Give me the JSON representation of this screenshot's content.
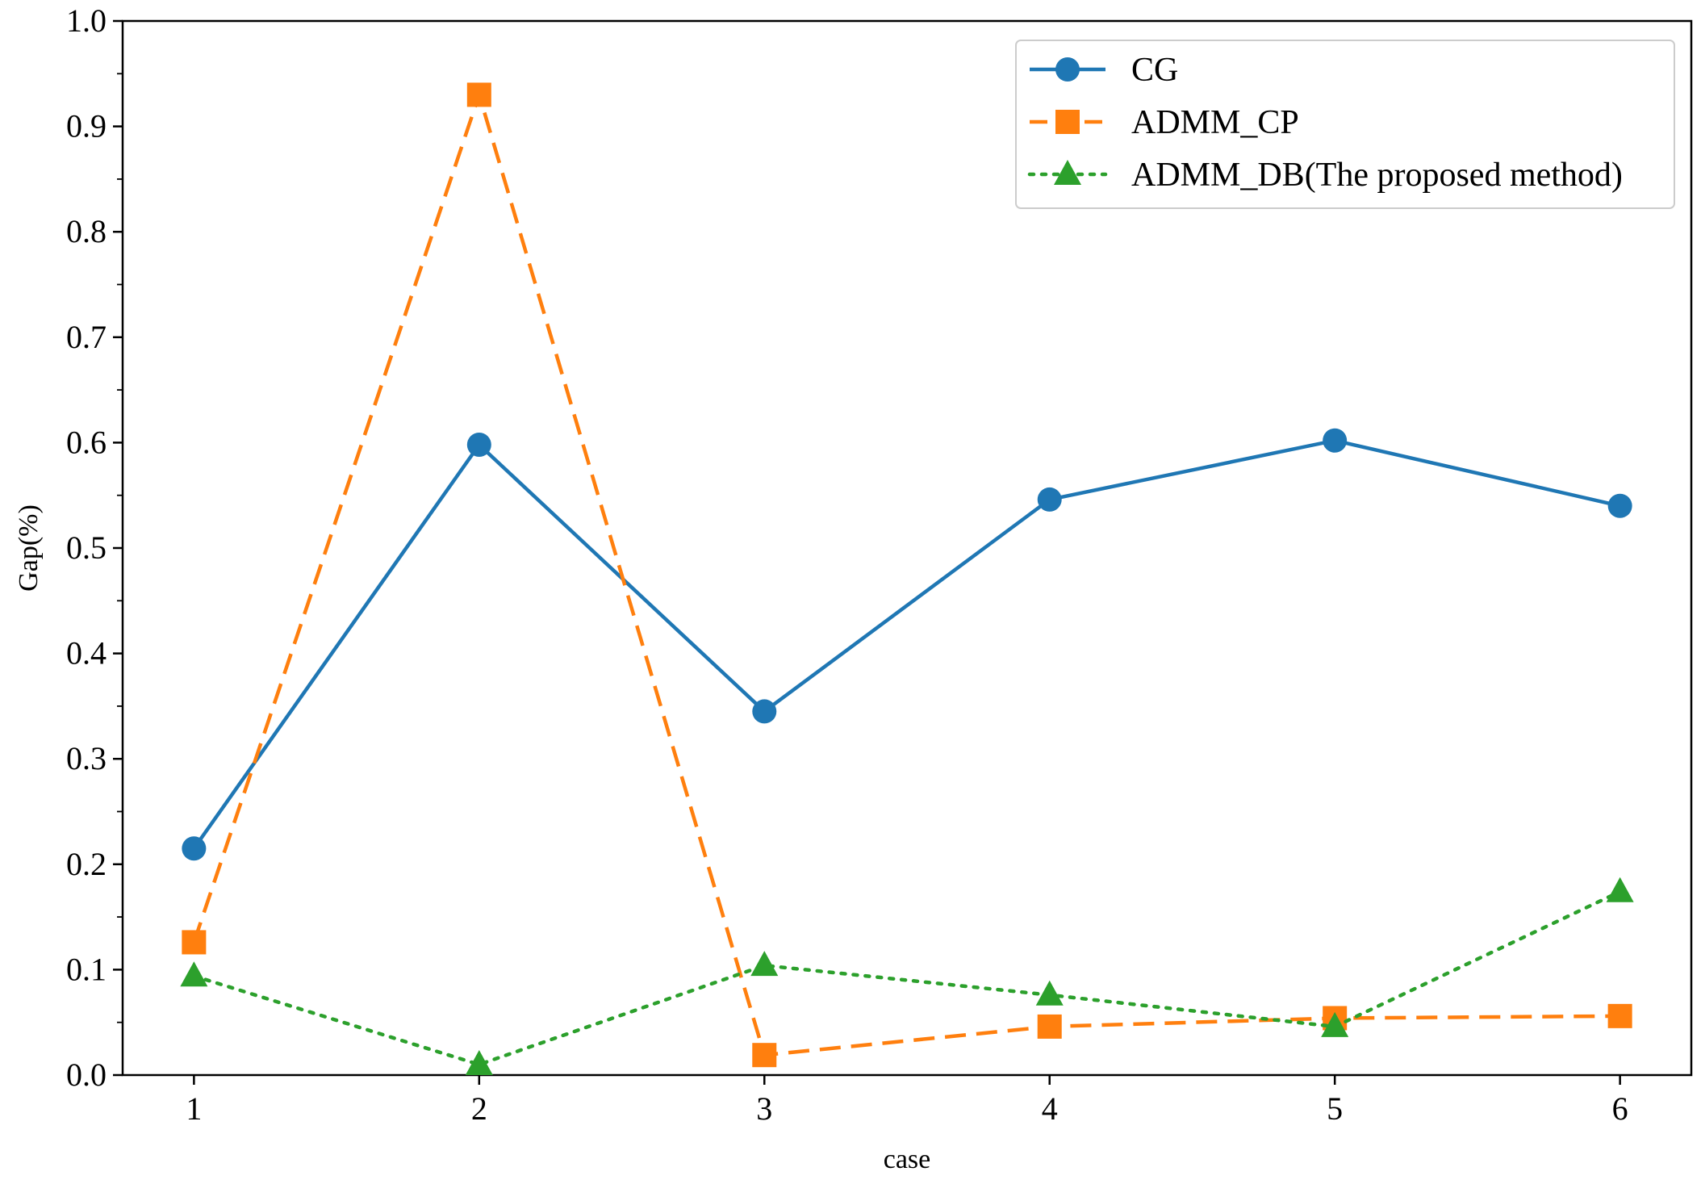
{
  "chart_data": {
    "type": "line",
    "xlabel": "case",
    "ylabel": "Gap(%)",
    "x": [
      1,
      2,
      3,
      4,
      5,
      6
    ],
    "xlim": [
      0.75,
      6.25
    ],
    "ylim": [
      0.0,
      1.0
    ],
    "y_ticks": [
      "0.0",
      "0.1",
      "0.2",
      "0.3",
      "0.4",
      "0.5",
      "0.6",
      "0.7",
      "0.8",
      "0.9",
      "1.0"
    ],
    "x_ticks": [
      "1",
      "2",
      "3",
      "4",
      "5",
      "6"
    ],
    "grid": false,
    "legend_position": "top-right",
    "series": [
      {
        "name": "CG",
        "values": [
          0.215,
          0.598,
          0.345,
          0.546,
          0.602,
          0.54
        ],
        "color": "#1f77b4",
        "marker": "circle",
        "linestyle": "solid"
      },
      {
        "name": "ADMM_CP",
        "values": [
          0.126,
          0.93,
          0.019,
          0.046,
          0.054,
          0.056
        ],
        "color": "#ff7f0e",
        "marker": "square",
        "linestyle": "dashed"
      },
      {
        "name": "ADMM_DB(The proposed method)",
        "values": [
          0.094,
          0.01,
          0.104,
          0.076,
          0.046,
          0.174
        ],
        "color": "#2ca02c",
        "marker": "triangle",
        "linestyle": "dotted"
      }
    ]
  }
}
